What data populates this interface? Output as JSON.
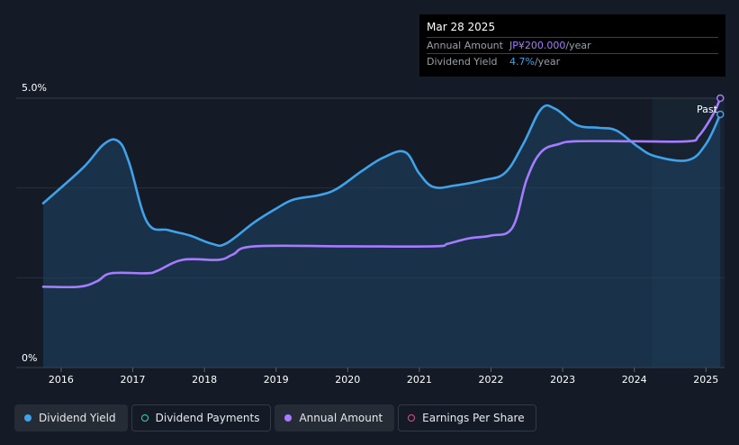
{
  "tooltip": {
    "date": "Mar 28 2025",
    "annual_amount_label": "Annual Amount",
    "annual_amount_value": "JP¥200.000",
    "annual_amount_unit": "/year",
    "dividend_yield_label": "Dividend Yield",
    "dividend_yield_value": "4.7%",
    "dividend_yield_unit": "/year"
  },
  "past_label": "Past",
  "legend": {
    "items": [
      {
        "label": "Dividend Yield",
        "color": "#3fa2ea",
        "filled": true
      },
      {
        "label": "Dividend Payments",
        "color": "#34d3b9",
        "filled": false
      },
      {
        "label": "Annual Amount",
        "color": "#a57cff",
        "filled": true
      },
      {
        "label": "Earnings Per Share",
        "color": "#e0518b",
        "filled": false
      }
    ]
  },
  "colors": {
    "background": "#151b26",
    "yield_line": "#3fa2ea",
    "annual_amount_line": "#a57cff",
    "forecast_band": "#1b2a3a"
  },
  "chart_data": {
    "type": "line",
    "x_ticks": [
      "2016",
      "2017",
      "2018",
      "2019",
      "2020",
      "2021",
      "2022",
      "2023",
      "2024",
      "2025"
    ],
    "y_ticks": [
      "0%",
      "5.0%"
    ],
    "ylim": [
      0,
      5.0
    ],
    "xlim": [
      2015.3,
      2025.25
    ],
    "series": [
      {
        "name": "Dividend Yield",
        "unit": "%",
        "points": [
          [
            2015.75,
            3.05
          ],
          [
            2016.3,
            3.7
          ],
          [
            2016.6,
            4.15
          ],
          [
            2016.8,
            4.2
          ],
          [
            2016.95,
            3.8
          ],
          [
            2017.2,
            2.7
          ],
          [
            2017.5,
            2.55
          ],
          [
            2017.8,
            2.45
          ],
          [
            2018.1,
            2.3
          ],
          [
            2018.3,
            2.3
          ],
          [
            2018.7,
            2.7
          ],
          [
            2019.0,
            2.95
          ],
          [
            2019.25,
            3.12
          ],
          [
            2019.6,
            3.2
          ],
          [
            2019.85,
            3.32
          ],
          [
            2020.2,
            3.65
          ],
          [
            2020.5,
            3.9
          ],
          [
            2020.8,
            4.0
          ],
          [
            2021.0,
            3.6
          ],
          [
            2021.2,
            3.35
          ],
          [
            2021.5,
            3.38
          ],
          [
            2021.9,
            3.48
          ],
          [
            2022.2,
            3.62
          ],
          [
            2022.45,
            4.15
          ],
          [
            2022.7,
            4.8
          ],
          [
            2022.9,
            4.8
          ],
          [
            2023.2,
            4.5
          ],
          [
            2023.5,
            4.45
          ],
          [
            2023.75,
            4.4
          ],
          [
            2024.05,
            4.1
          ],
          [
            2024.3,
            3.92
          ],
          [
            2024.75,
            3.85
          ],
          [
            2025.0,
            4.15
          ],
          [
            2025.2,
            4.7
          ]
        ]
      },
      {
        "name": "Annual Amount",
        "unit": "JP¥/year",
        "points": [
          [
            2015.75,
            1.5
          ],
          [
            2016.25,
            1.5
          ],
          [
            2016.5,
            1.6
          ],
          [
            2016.7,
            1.75
          ],
          [
            2017.2,
            1.75
          ],
          [
            2017.35,
            1.8
          ],
          [
            2017.7,
            2.0
          ],
          [
            2018.2,
            2.0
          ],
          [
            2018.4,
            2.1
          ],
          [
            2018.7,
            2.25
          ],
          [
            2020.0,
            2.25
          ],
          [
            2021.2,
            2.25
          ],
          [
            2021.4,
            2.3
          ],
          [
            2021.7,
            2.4
          ],
          [
            2022.0,
            2.45
          ],
          [
            2022.3,
            2.6
          ],
          [
            2022.5,
            3.5
          ],
          [
            2022.7,
            4.0
          ],
          [
            2022.95,
            4.15
          ],
          [
            2023.2,
            4.2
          ],
          [
            2024.0,
            4.2
          ],
          [
            2024.75,
            4.2
          ],
          [
            2024.9,
            4.3
          ],
          [
            2025.1,
            4.7
          ],
          [
            2025.2,
            5.0
          ]
        ]
      }
    ],
    "forecast_region_start": 2024.25,
    "title": "",
    "xlabel": "",
    "ylabel": "",
    "grid": true
  }
}
